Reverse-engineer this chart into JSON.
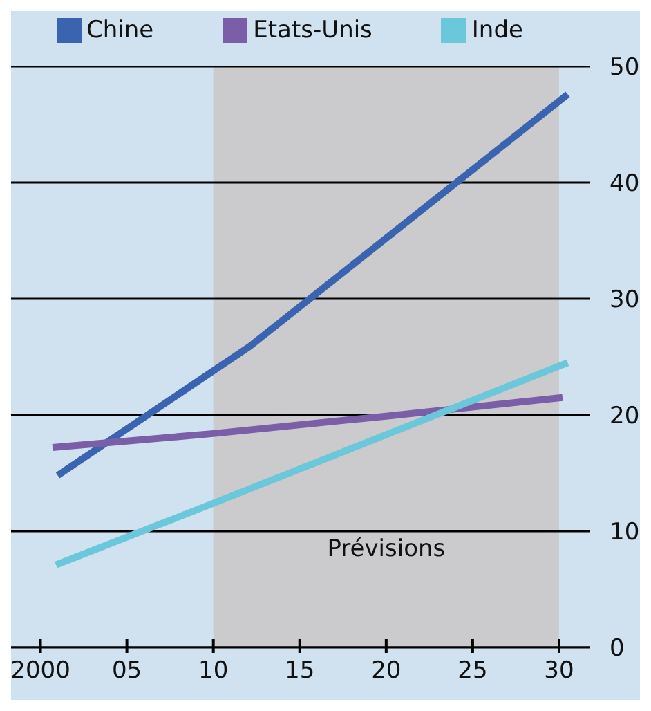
{
  "chart_data": {
    "type": "line",
    "xlim": [
      1998.3,
      2031.8
    ],
    "ylim": [
      0,
      50
    ],
    "xticks": [
      {
        "value": 2000,
        "label": "2000"
      },
      {
        "value": 2005,
        "label": "05"
      },
      {
        "value": 2010,
        "label": "10"
      },
      {
        "value": 2015,
        "label": "15"
      },
      {
        "value": 2020,
        "label": "20"
      },
      {
        "value": 2025,
        "label": "25"
      },
      {
        "value": 2030,
        "label": "30"
      }
    ],
    "yticks": [
      0,
      10,
      20,
      30,
      40,
      50
    ],
    "grid": "y",
    "legend": "top",
    "marker": "none",
    "line_style": "solid",
    "bands": [
      {
        "axis": "x",
        "from": 2010,
        "to": 2030,
        "label": "Prévisions",
        "color": "#cbcbcd"
      }
    ],
    "series": [
      {
        "name": "Chine",
        "color": "#3a63b0",
        "x": [
          2001,
          2012.1,
          2030.5
        ],
        "values": [
          14.8,
          25.9,
          47.6
        ]
      },
      {
        "name": "Etats-Unis",
        "color": "#7b5ea8",
        "x": [
          2000.7,
          2010,
          2020,
          2030.2
        ],
        "values": [
          17.2,
          18.4,
          19.9,
          21.5
        ]
      },
      {
        "name": "Inde",
        "color": "#6ac8da",
        "x": [
          2000.9,
          2010,
          2030.5
        ],
        "values": [
          7.1,
          12.4,
          24.5
        ]
      }
    ]
  }
}
